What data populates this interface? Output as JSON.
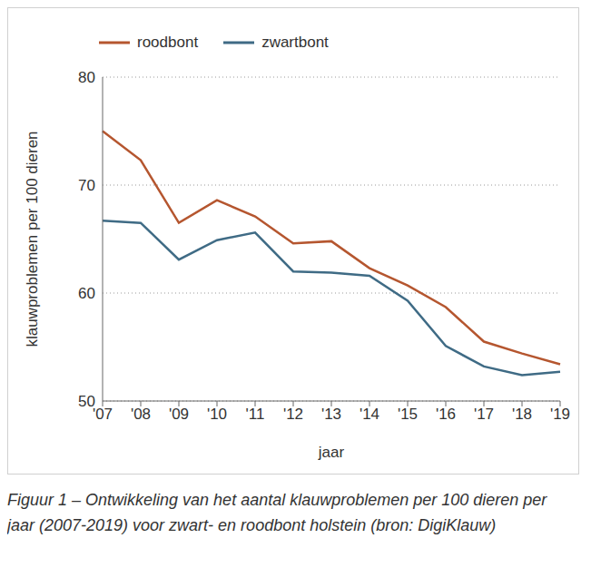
{
  "chart_data": {
    "type": "line",
    "categories": [
      "'07",
      "'08",
      "'09",
      "'10",
      "'11",
      "'12",
      "'13",
      "'14",
      "'15",
      "'16",
      "'17",
      "'18",
      "'19"
    ],
    "series": [
      {
        "name": "roodbont",
        "color": "#b5562f",
        "values": [
          75,
          72.3,
          66.5,
          68.6,
          67.1,
          64.6,
          64.8,
          62.3,
          60.7,
          58.7,
          55.5,
          54.4,
          53.4
        ]
      },
      {
        "name": "zwartbont",
        "color": "#3f6b85",
        "values": [
          66.7,
          66.5,
          63.1,
          64.9,
          65.6,
          62,
          61.9,
          61.6,
          59.3,
          55.1,
          53.2,
          52.4,
          52.7
        ]
      }
    ],
    "x_label": "jaar",
    "y_label": "klauwproblemen per 100 dieren",
    "ylim": [
      50,
      80
    ],
    "yticks": [
      50,
      60,
      70,
      80
    ],
    "grid": true,
    "legend": "top-left",
    "caption": "Figuur 1 – Ontwikkeling van het aantal klauwproblemen per 100 dieren per jaar (2007-2019) voor zwart- en roodbont holstein (bron: DigiKlauw)"
  }
}
